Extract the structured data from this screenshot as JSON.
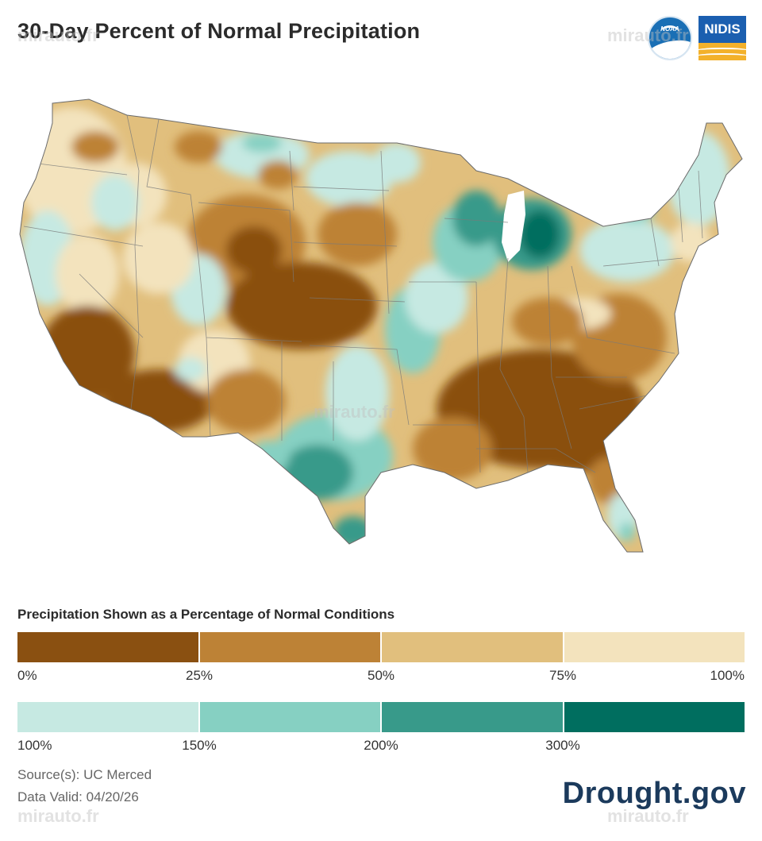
{
  "title": "30-Day Percent of Normal Precipitation",
  "logos": {
    "noaa_text": "NOAA",
    "nidis_text": "NIDIS"
  },
  "map": {
    "colors": {
      "dark_brown": "#8a5011",
      "brown": "#bd8236",
      "tan": "#e1bf7d",
      "cream": "#f3e3bd",
      "light_teal": "#c6e9e2",
      "teal": "#86d0c2",
      "mid_teal": "#389a8a",
      "dark_teal": "#006e5f"
    }
  },
  "legend": {
    "title": "Precipitation Shown as a Percentage of Normal Conditions",
    "dry_bins": [
      {
        "color": "#8a5011"
      },
      {
        "color": "#bd8236"
      },
      {
        "color": "#e1bf7d"
      },
      {
        "color": "#f3e3bd"
      }
    ],
    "dry_ticks": [
      "0%",
      "25%",
      "50%",
      "75%",
      "100%"
    ],
    "wet_bins": [
      {
        "color": "#c6e9e2"
      },
      {
        "color": "#86d0c2"
      },
      {
        "color": "#389a8a"
      },
      {
        "color": "#006e5f"
      }
    ],
    "wet_ticks": [
      "100%",
      "150%",
      "200%",
      "300%"
    ]
  },
  "source": "Source(s): UC Merced",
  "valid": "Data Valid: 04/20/26",
  "brand": "Drought.gov",
  "watermark": "mirauto.fr"
}
